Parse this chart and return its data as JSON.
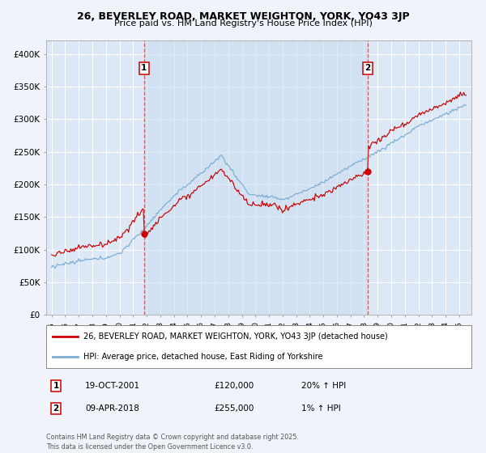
{
  "title1": "26, BEVERLEY ROAD, MARKET WEIGHTON, YORK, YO43 3JP",
  "title2": "Price paid vs. HM Land Registry's House Price Index (HPI)",
  "background_color": "#f0f4fa",
  "plot_bg": "#dce8f5",
  "shade_color": "#c8dcf0",
  "line1_color": "#cc0000",
  "line2_color": "#7aadd4",
  "legend1": "26, BEVERLEY ROAD, MARKET WEIGHTON, YORK, YO43 3JP (detached house)",
  "legend2": "HPI: Average price, detached house, East Riding of Yorkshire",
  "buy1_year": 2001.8,
  "buy2_year": 2018.28,
  "buy1_price": 120000,
  "buy2_price": 255000,
  "table_row1": [
    "1",
    "19-OCT-2001",
    "£120,000",
    "20% ↑ HPI"
  ],
  "table_row2": [
    "2",
    "09-APR-2018",
    "£255,000",
    "1% ↑ HPI"
  ],
  "footer": "Contains HM Land Registry data © Crown copyright and database right 2025.\nThis data is licensed under the Open Government Licence v3.0.",
  "ylim": [
    0,
    420000
  ],
  "yticks": [
    0,
    50000,
    100000,
    150000,
    200000,
    250000,
    300000,
    350000,
    400000
  ],
  "ytick_labels": [
    "£0",
    "£50K",
    "£100K",
    "£150K",
    "£200K",
    "£250K",
    "£300K",
    "£350K",
    "£400K"
  ],
  "xlim_left": 1994.6,
  "xlim_right": 2025.9
}
